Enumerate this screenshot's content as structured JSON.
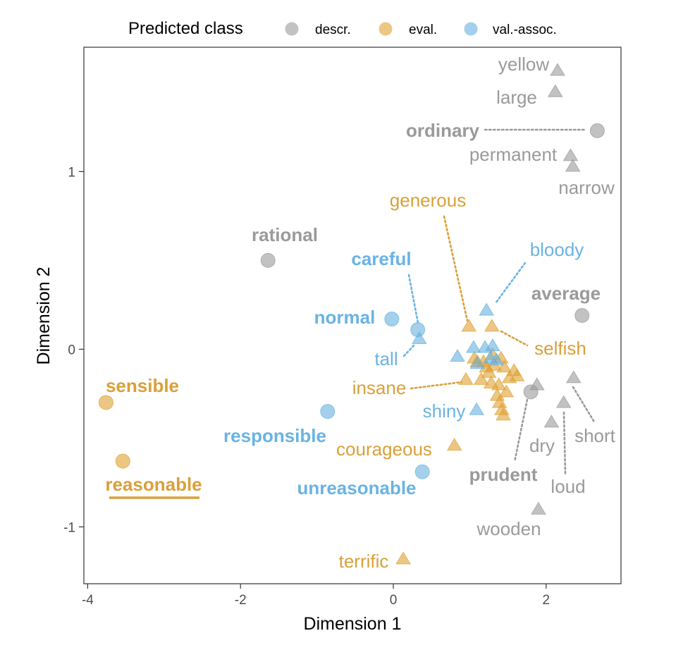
{
  "colors": {
    "descr": "#999999",
    "eval": "#E0A030",
    "val_assoc": "#68B0E0",
    "descr_text": "#9a9a9a",
    "eval_text": "#D9A03A",
    "val_assoc_text": "#6AB3E3"
  },
  "chart_data": {
    "type": "scatter",
    "xlabel": "Dimension 1",
    "ylabel": "Dimension 2",
    "xlim": [
      -4.05,
      2.98
    ],
    "ylim": [
      -1.32,
      1.7
    ],
    "xticks": [
      -4,
      -2,
      0,
      2
    ],
    "yticks": [
      -1,
      0,
      1
    ],
    "xtick_labels": [
      "-4",
      "-2",
      "0",
      "2"
    ],
    "ytick_labels": [
      "-1",
      "0",
      "1"
    ],
    "grid": false,
    "legend": {
      "title": "Predicted class",
      "position": "top",
      "entries": [
        {
          "key": "descr",
          "label": "descr."
        },
        {
          "key": "eval",
          "label": "eval."
        },
        {
          "key": "val_assoc",
          "label": "val.-assoc."
        }
      ]
    },
    "labeled_points": [
      {
        "label": "yellow",
        "x": 2.15,
        "y": 1.57,
        "shape": "triangle",
        "cls": "descr",
        "bold": false
      },
      {
        "label": "large",
        "x": 2.12,
        "y": 1.45,
        "shape": "triangle",
        "cls": "descr",
        "bold": false
      },
      {
        "label": "ordinary",
        "x": 2.67,
        "y": 1.23,
        "shape": "circle",
        "cls": "descr",
        "bold": true
      },
      {
        "label": "permanent",
        "x": 2.32,
        "y": 1.09,
        "shape": "triangle",
        "cls": "descr",
        "bold": false
      },
      {
        "label": "narrow",
        "x": 2.35,
        "y": 1.03,
        "shape": "triangle",
        "cls": "descr",
        "bold": false
      },
      {
        "label": "rational",
        "x": -1.64,
        "y": 0.5,
        "shape": "circle",
        "cls": "descr",
        "bold": true
      },
      {
        "label": "average",
        "x": 2.47,
        "y": 0.19,
        "shape": "circle",
        "cls": "descr",
        "bold": true
      },
      {
        "label": "prudent",
        "x": 1.8,
        "y": -0.24,
        "shape": "circle",
        "cls": "descr",
        "bold": true
      },
      {
        "label": "dry",
        "x": 2.07,
        "y": -0.41,
        "shape": "triangle",
        "cls": "descr",
        "bold": false
      },
      {
        "label": "short",
        "x": 2.36,
        "y": -0.16,
        "shape": "triangle",
        "cls": "descr",
        "bold": false
      },
      {
        "label": "loud",
        "x": 2.23,
        "y": -0.3,
        "shape": "triangle",
        "cls": "descr",
        "bold": false
      },
      {
        "label": "wooden",
        "x": 1.9,
        "y": -0.9,
        "shape": "triangle",
        "cls": "descr",
        "bold": false
      },
      {
        "label": "generous",
        "x": 0.99,
        "y": 0.13,
        "shape": "triangle",
        "cls": "eval",
        "bold": false
      },
      {
        "label": "selfish",
        "x": 1.29,
        "y": 0.13,
        "shape": "triangle",
        "cls": "eval",
        "bold": false
      },
      {
        "label": "insane",
        "x": 0.95,
        "y": -0.17,
        "shape": "triangle",
        "cls": "eval",
        "bold": false
      },
      {
        "label": "courageous",
        "x": 0.8,
        "y": -0.54,
        "shape": "triangle",
        "cls": "eval",
        "bold": false
      },
      {
        "label": "terrific",
        "x": 0.13,
        "y": -1.18,
        "shape": "triangle",
        "cls": "eval",
        "bold": false
      },
      {
        "label": "sensible",
        "x": -3.76,
        "y": -0.3,
        "shape": "circle",
        "cls": "eval",
        "bold": true
      },
      {
        "label": "reasonable",
        "x": -3.54,
        "y": -0.63,
        "shape": "circle",
        "cls": "eval",
        "bold": true,
        "underline": true
      },
      {
        "label": "bloody",
        "x": 1.22,
        "y": 0.22,
        "shape": "triangle",
        "cls": "val_assoc",
        "bold": false
      },
      {
        "label": "careful",
        "x": 0.32,
        "y": 0.11,
        "shape": "circle",
        "cls": "val_assoc",
        "bold": true
      },
      {
        "label": "normal",
        "x": -0.02,
        "y": 0.17,
        "shape": "circle",
        "cls": "val_assoc",
        "bold": true
      },
      {
        "label": "tall",
        "x": 0.34,
        "y": 0.06,
        "shape": "triangle",
        "cls": "val_assoc",
        "bold": false
      },
      {
        "label": "shiny",
        "x": 1.09,
        "y": -0.34,
        "shape": "triangle",
        "cls": "val_assoc",
        "bold": false
      },
      {
        "label": "responsible",
        "x": -0.86,
        "y": -0.35,
        "shape": "circle",
        "cls": "val_assoc",
        "bold": true
      },
      {
        "label": "unreasonable",
        "x": 0.38,
        "y": -0.69,
        "shape": "circle",
        "cls": "val_assoc",
        "bold": true
      }
    ],
    "unlabeled_points": [
      {
        "x": 1.18,
        "y": -0.07,
        "shape": "triangle",
        "cls": "eval"
      },
      {
        "x": 1.3,
        "y": -0.03,
        "shape": "triangle",
        "cls": "eval"
      },
      {
        "x": 1.22,
        "y": -0.1,
        "shape": "triangle",
        "cls": "eval"
      },
      {
        "x": 1.32,
        "y": -0.09,
        "shape": "triangle",
        "cls": "eval"
      },
      {
        "x": 1.41,
        "y": -0.05,
        "shape": "triangle",
        "cls": "eval"
      },
      {
        "x": 1.1,
        "y": -0.07,
        "shape": "triangle",
        "cls": "eval"
      },
      {
        "x": 1.25,
        "y": -0.13,
        "shape": "triangle",
        "cls": "eval"
      },
      {
        "x": 1.15,
        "y": -0.17,
        "shape": "triangle",
        "cls": "eval"
      },
      {
        "x": 1.28,
        "y": -0.19,
        "shape": "triangle",
        "cls": "eval"
      },
      {
        "x": 1.38,
        "y": -0.2,
        "shape": "triangle",
        "cls": "eval"
      },
      {
        "x": 1.45,
        "y": -0.1,
        "shape": "triangle",
        "cls": "eval"
      },
      {
        "x": 1.52,
        "y": -0.16,
        "shape": "triangle",
        "cls": "eval"
      },
      {
        "x": 1.58,
        "y": -0.12,
        "shape": "triangle",
        "cls": "eval"
      },
      {
        "x": 1.62,
        "y": -0.15,
        "shape": "triangle",
        "cls": "eval"
      },
      {
        "x": 1.48,
        "y": -0.24,
        "shape": "triangle",
        "cls": "eval"
      },
      {
        "x": 1.36,
        "y": -0.26,
        "shape": "triangle",
        "cls": "eval"
      },
      {
        "x": 1.39,
        "y": -0.3,
        "shape": "triangle",
        "cls": "eval"
      },
      {
        "x": 1.42,
        "y": -0.34,
        "shape": "triangle",
        "cls": "eval"
      },
      {
        "x": 1.44,
        "y": -0.37,
        "shape": "triangle",
        "cls": "eval"
      },
      {
        "x": 1.06,
        "y": -0.05,
        "shape": "triangle",
        "cls": "eval"
      },
      {
        "x": 1.2,
        "y": 0.01,
        "shape": "triangle",
        "cls": "val_assoc"
      },
      {
        "x": 1.3,
        "y": 0.02,
        "shape": "triangle",
        "cls": "val_assoc"
      },
      {
        "x": 1.05,
        "y": 0.01,
        "shape": "triangle",
        "cls": "val_assoc"
      },
      {
        "x": 0.84,
        "y": -0.04,
        "shape": "triangle",
        "cls": "val_assoc"
      },
      {
        "x": 1.1,
        "y": -0.08,
        "shape": "triangle",
        "cls": "val_assoc"
      },
      {
        "x": 1.27,
        "y": -0.05,
        "shape": "triangle",
        "cls": "val_assoc"
      },
      {
        "x": 1.35,
        "y": -0.06,
        "shape": "triangle",
        "cls": "val_assoc"
      },
      {
        "x": 1.88,
        "y": -0.2,
        "shape": "triangle",
        "cls": "descr"
      }
    ]
  }
}
